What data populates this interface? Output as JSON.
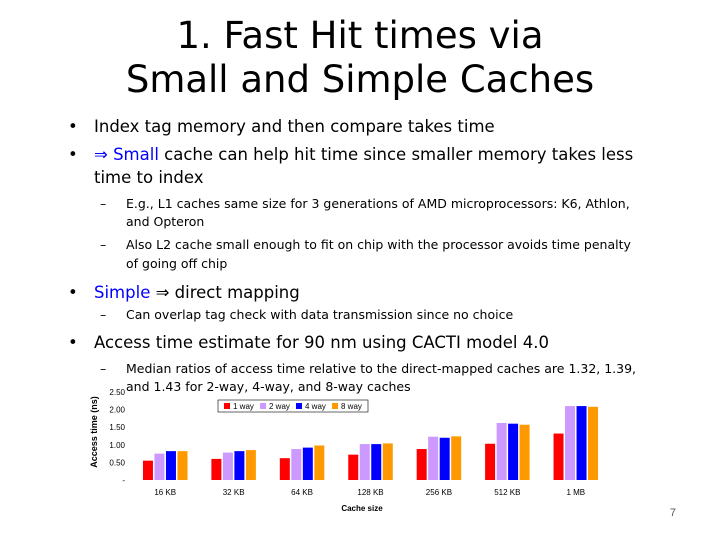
{
  "title": {
    "line1": "1. Fast Hit times via",
    "line2": "Small and Simple Caches"
  },
  "bullets": {
    "b1": "Index tag memory and then compare takes time",
    "b2_symbol": "⇒",
    "b2_accent": "Small",
    "b2_rest1": "cache can help hit time since smaller memory takes less",
    "b2_rest2": "time to index",
    "b2_sub1_line1": "E.g., L1 caches same size for 3 generations of AMD microprocessors: K6, Athlon,",
    "b2_sub1_line2": "and Opteron",
    "b2_sub2_line1": "Also L2 cache small enough to fit on chip with the processor avoids time penalty",
    "b2_sub2_line2": "of going off chip",
    "b3_accent": "Simple",
    "b3_symbol": "⇒",
    "b3_rest": "direct mapping",
    "b3_sub1": "Can overlap tag check with data transmission since no choice",
    "b4": "Access time estimate for 90 nm using CACTI model 4.0",
    "b4_sub1_line1": "Median ratios of access time relative to the direct-mapped caches are 1.32, 1.39,",
    "b4_sub1_line2": "and 1.43 for 2-way, 4-way, and 8-way caches",
    "dash": "–",
    "dot": "•"
  },
  "slide_number": "7",
  "chart_data": {
    "type": "bar",
    "categories": [
      "16 KB",
      "32 KB",
      "64 KB",
      "128 KB",
      "256 KB",
      "512 KB",
      "1 MB"
    ],
    "series": [
      {
        "name": "1 way",
        "color": "#ff0000",
        "values": [
          0.55,
          0.6,
          0.62,
          0.72,
          0.88,
          1.03,
          1.32
        ]
      },
      {
        "name": "2 way",
        "color": "#cc99ff",
        "values": [
          0.75,
          0.78,
          0.88,
          1.02,
          1.23,
          1.62,
          2.1
        ]
      },
      {
        "name": "4 way",
        "color": "#0000ff",
        "values": [
          0.82,
          0.82,
          0.92,
          1.02,
          1.2,
          1.6,
          2.1
        ]
      },
      {
        "name": "8 way",
        "color": "#ff9900",
        "values": [
          0.82,
          0.85,
          0.98,
          1.04,
          1.24,
          1.57,
          2.08
        ]
      }
    ],
    "xlabel": "Cache size",
    "ylabel": "Access time (ns)",
    "ylim": [
      0,
      2.5
    ],
    "yticks": [
      "-",
      "0.50",
      "1.00",
      "1.50",
      "2.00",
      "2.50"
    ],
    "legend_placement": "top"
  }
}
